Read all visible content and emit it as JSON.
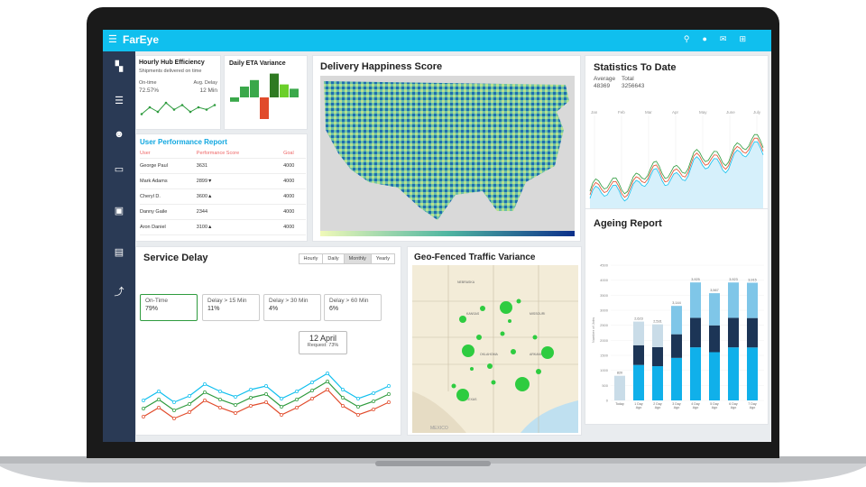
{
  "app": {
    "title": "FarEye"
  },
  "topbar": {
    "menu_icon": "menu-icon",
    "icons": [
      "search-icon",
      "bell-icon",
      "mail-icon",
      "grid-icon"
    ]
  },
  "sidebar": {
    "icons": [
      "dashboard-icon",
      "list-icon",
      "users-icon",
      "car-icon",
      "briefcase-icon",
      "document-icon",
      "trend-icon"
    ]
  },
  "hub": {
    "title": "Hourly Hub Efficiency",
    "subtitle": "Shipments delivered on time",
    "ontime_label": "On-time",
    "ontime_value": "72.57%",
    "delay_label": "Avg. Delay",
    "delay_value": "12 Min",
    "spark": [
      3,
      6,
      4,
      8,
      5,
      7,
      4,
      6,
      5,
      7
    ]
  },
  "eta": {
    "title": "Daily ETA Variance",
    "bars": [
      [
        -2,
        "#3aa84a"
      ],
      [
        5,
        "#3aa84a"
      ],
      [
        8,
        "#3aa84a"
      ],
      [
        -10,
        "#e14b2b"
      ],
      [
        11,
        "#2f7a22"
      ],
      [
        6,
        "#6bcf2a"
      ],
      [
        4,
        "#3aa84a"
      ]
    ]
  },
  "happiness": {
    "title": "Delivery Happiness Score"
  },
  "stats": {
    "title": "Statistics To Date",
    "avg_label": "Average",
    "avg_value": "48369",
    "total_label": "Total",
    "total_value": "3256643",
    "months": [
      "Jan",
      "Feb",
      "Mar",
      "Apr",
      "May",
      "June",
      "July"
    ]
  },
  "userperf": {
    "title": "User Performance Report",
    "headers": [
      "User",
      "Performance Score",
      "Goal"
    ],
    "rows": [
      {
        "user": "George Paul",
        "score": "3631",
        "goal": "4000"
      },
      {
        "user": "Mark Adams",
        "score": "2899▼",
        "goal": "4000"
      },
      {
        "user": "Cheryl D.",
        "score": "3600▲",
        "goal": "4000"
      },
      {
        "user": "Danny Gaile",
        "score": "2344",
        "goal": "4000"
      },
      {
        "user": "Aron Daniel",
        "score": "3100▲",
        "goal": "4000"
      }
    ]
  },
  "ageing": {
    "title": "Ageing Report",
    "ylabel": "Number of Jobs",
    "yticks": [
      "0",
      "500",
      "1000",
      "1500",
      "2000",
      "2500",
      "3000",
      "3500",
      "4000",
      "4500"
    ],
    "categories": [
      "Today",
      "1 Day Ago",
      "2 Day Ago",
      "3 Day Ago",
      "4 Day Ago",
      "5 Day Ago",
      "6 Day Ago",
      "7 Day Ago"
    ],
    "totals": [
      "820",
      "2,623",
      "2,531",
      "3,144",
      "3,925",
      "3,567",
      "3,923",
      "3,915"
    ],
    "values": [
      820,
      2623,
      2531,
      3144,
      3925,
      3567,
      3923,
      3915
    ]
  },
  "service": {
    "title": "Service Delay",
    "tabs": [
      "Hourly",
      "Daily",
      "Monthly",
      "Yearly"
    ],
    "kpis": [
      {
        "label": "On-Time",
        "value": "79%"
      },
      {
        "label": "Delay > 15 Min",
        "value": "11%"
      },
      {
        "label": "Delay > 30 Min",
        "value": "4%"
      },
      {
        "label": "Delay > 60 Min",
        "value": "6%"
      }
    ],
    "tooltip_date": "12 April",
    "tooltip_req": "Request: 73%"
  },
  "geo": {
    "title": "Geo-Fenced Traffic Variance",
    "state_labels": [
      "NEBRASKA",
      "KANSAS",
      "OKLAHOMA",
      "TEXAS",
      "MISSOURI",
      "ARKANSAS",
      "MEXICO"
    ]
  }
}
